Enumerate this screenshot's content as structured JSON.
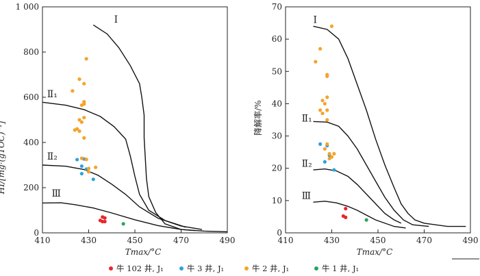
{
  "colors": {
    "niu102": "#e8262a",
    "niu3": "#2ea2dc",
    "niu2": "#f4a42a",
    "niu1": "#2aa55a",
    "curve": "#111111",
    "axis": "#222222"
  },
  "legend": {
    "items": [
      {
        "key": "niu102",
        "text": "牛 102 井, J₁"
      },
      {
        "key": "niu3",
        "text": "牛 3 井, J₁"
      },
      {
        "key": "niu2",
        "text": "牛 2 井, J₁"
      },
      {
        "key": "niu1",
        "text": "牛 1 井, J₁"
      }
    ]
  },
  "chart_data": [
    {
      "type": "scatter",
      "title": "",
      "xlabel": "Tmax/°C",
      "ylabel": "HI/[mg·(gTOC)⁻¹]",
      "xlim": [
        410,
        490
      ],
      "ylim": [
        0,
        1000
      ],
      "xticks": [
        410,
        430,
        450,
        470,
        490
      ],
      "yticks": [
        0,
        200,
        400,
        600,
        800,
        1000
      ],
      "ytick_labels": [
        "0",
        "200",
        "400",
        "600",
        "800",
        "1 000"
      ],
      "grid": false,
      "curves": [
        {
          "label": "Ⅰ",
          "label_at": [
            441,
            930
          ],
          "points": [
            [
              432,
              920
            ],
            [
              438,
              880
            ],
            [
              443,
              820
            ],
            [
              448,
              740
            ],
            [
              452,
              660
            ],
            [
              453,
              600
            ],
            [
              454,
              520
            ],
            [
              454,
              420
            ],
            [
              454.5,
              330
            ],
            [
              455,
              240
            ],
            [
              456,
              160
            ],
            [
              459,
              90
            ],
            [
              463,
              40
            ],
            [
              470,
              15
            ],
            [
              480,
              8
            ],
            [
              490,
              5
            ]
          ]
        },
        {
          "label": "Ⅱ₁",
          "label_at": [
            412,
            600
          ],
          "points": [
            [
              410,
              578
            ],
            [
              420,
              565
            ],
            [
              428,
              545
            ],
            [
              435,
              515
            ],
            [
              441,
              470
            ],
            [
              446,
              415
            ],
            [
              448,
              340
            ],
            [
              450,
              250
            ],
            [
              452,
              170
            ],
            [
              456,
              100
            ],
            [
              463,
              55
            ],
            [
              472,
              25
            ]
          ]
        },
        {
          "label": "Ⅱ₂",
          "label_at": [
            412,
            325
          ],
          "points": [
            [
              410,
              300
            ],
            [
              420,
              295
            ],
            [
              428,
              280
            ],
            [
              434,
              255
            ],
            [
              440,
              215
            ],
            [
              446,
              170
            ],
            [
              452,
              115
            ],
            [
              460,
              65
            ],
            [
              470,
              30
            ],
            [
              479,
              15
            ]
          ]
        },
        {
          "label": "Ⅲ",
          "label_at": [
            414,
            160
          ],
          "points": [
            [
              410,
              132
            ],
            [
              418,
              133
            ],
            [
              424,
              125
            ],
            [
              432,
              110
            ],
            [
              440,
              88
            ],
            [
              450,
              58
            ],
            [
              460,
              32
            ],
            [
              470,
              15
            ],
            [
              476,
              10
            ]
          ]
        }
      ],
      "series": [
        {
          "key": "niu102",
          "points": [
            [
              436,
              70
            ],
            [
              437,
              66
            ],
            [
              435,
              55
            ],
            [
              436,
              50
            ],
            [
              437,
              50
            ]
          ]
        },
        {
          "key": "niu3",
          "points": [
            [
              425,
              324
            ],
            [
              428,
              327
            ],
            [
              427,
              295
            ],
            [
              429,
              282
            ],
            [
              427,
              262
            ],
            [
              432,
              237
            ]
          ]
        },
        {
          "key": "niu2",
          "points": [
            [
              429,
              770
            ],
            [
              426,
              680
            ],
            [
              428,
              660
            ],
            [
              423,
              628
            ],
            [
              428,
              580
            ],
            [
              428,
              570
            ],
            [
              427,
              565
            ],
            [
              428,
              510
            ],
            [
              426,
              500
            ],
            [
              427,
              490
            ],
            [
              425,
              460
            ],
            [
              424,
              455
            ],
            [
              426,
              450
            ],
            [
              428,
              420
            ],
            [
              427,
              330
            ],
            [
              429,
              325
            ],
            [
              433,
              290
            ],
            [
              430,
              285
            ],
            [
              430,
              270
            ]
          ]
        },
        {
          "key": "niu1",
          "points": [
            [
              445,
              40
            ]
          ]
        }
      ]
    },
    {
      "type": "scatter",
      "title": "",
      "xlabel": "Tmax/°C",
      "ylabel": "降解率/%",
      "xlim": [
        410,
        490
      ],
      "ylim": [
        0,
        70
      ],
      "xticks": [
        410,
        430,
        450,
        470,
        490
      ],
      "yticks": [
        0,
        10,
        20,
        30,
        40,
        50,
        60,
        70
      ],
      "ytick_labels": [
        "0",
        "10",
        "20",
        "30",
        "40",
        "50",
        "60",
        "70"
      ],
      "grid": false,
      "curves": [
        {
          "label": "Ⅰ",
          "label_at": [
            422,
            65
          ],
          "points": [
            [
              422,
              64
            ],
            [
              428,
              63
            ],
            [
              433,
              60
            ],
            [
              437,
              54
            ],
            [
              441,
              46
            ],
            [
              445,
              38
            ],
            [
              449,
              29
            ],
            [
              453,
              21
            ],
            [
              457,
              14
            ],
            [
              460,
              9
            ],
            [
              463,
              6
            ],
            [
              466,
              4
            ],
            [
              470,
              3
            ],
            [
              480,
              2
            ],
            [
              488,
              2
            ]
          ]
        },
        {
          "label": "Ⅱ₁",
          "label_at": [
            417,
            34.5
          ],
          "points": [
            [
              422,
              34.5
            ],
            [
              428,
              34.3
            ],
            [
              433,
              33
            ],
            [
              437,
              30
            ],
            [
              441,
              26
            ],
            [
              445,
              21
            ],
            [
              449,
              16
            ],
            [
              453,
              11
            ],
            [
              457,
              7
            ],
            [
              461,
              4
            ],
            [
              465,
              2.5
            ],
            [
              472,
              2
            ]
          ]
        },
        {
          "label": "Ⅱ₂",
          "label_at": [
            417,
            20.5
          ],
          "points": [
            [
              422,
              19.5
            ],
            [
              427,
              19.8
            ],
            [
              432,
              19.2
            ],
            [
              437,
              17.5
            ],
            [
              441,
              15
            ],
            [
              445,
              12
            ],
            [
              449,
              9
            ],
            [
              453,
              6
            ],
            [
              457,
              4
            ],
            [
              460,
              3
            ]
          ]
        },
        {
          "label": "Ⅲ",
          "label_at": [
            417,
            10.5
          ],
          "points": [
            [
              422,
              9.5
            ],
            [
              427,
              9.8
            ],
            [
              432,
              9.3
            ],
            [
              437,
              8.2
            ],
            [
              441,
              7
            ],
            [
              445,
              5.5
            ],
            [
              449,
              4
            ],
            [
              453,
              3
            ],
            [
              457,
              2
            ],
            [
              462,
              1.5
            ]
          ]
        }
      ],
      "series": [
        {
          "key": "niu102",
          "points": [
            [
              436,
              7.5
            ],
            [
              435,
              5.2
            ],
            [
              436,
              4.8
            ]
          ]
        },
        {
          "key": "niu3",
          "points": [
            [
              425,
              27.5
            ],
            [
              428,
              27
            ],
            [
              429,
              24
            ],
            [
              427,
              22
            ],
            [
              431,
              19.5
            ]
          ]
        },
        {
          "key": "niu2",
          "points": [
            [
              430,
              64
            ],
            [
              425,
              57
            ],
            [
              423,
              53
            ],
            [
              428,
              49
            ],
            [
              428,
              48.5
            ],
            [
              428,
              42
            ],
            [
              426,
              41
            ],
            [
              427,
              40
            ],
            [
              428,
              38
            ],
            [
              425,
              38
            ],
            [
              426,
              37
            ],
            [
              428,
              35
            ],
            [
              428,
              27.5
            ],
            [
              427,
              26
            ],
            [
              429,
              24.5
            ],
            [
              431,
              24.5
            ],
            [
              430,
              23.5
            ],
            [
              429,
              23
            ]
          ]
        },
        {
          "key": "niu1",
          "points": [
            [
              445,
              4
            ]
          ]
        }
      ]
    }
  ]
}
